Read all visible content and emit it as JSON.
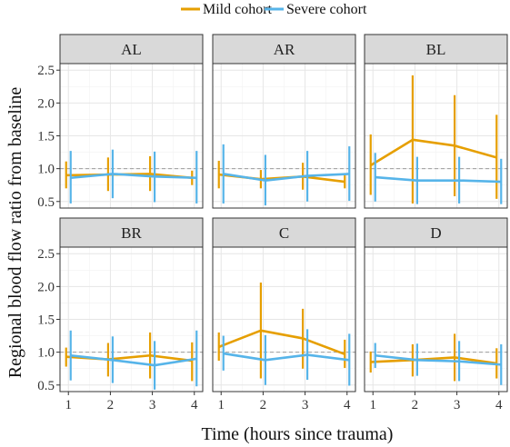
{
  "chart_data": {
    "type": "line",
    "facets": [
      "AL",
      "AR",
      "BL",
      "BR",
      "C",
      "D"
    ],
    "xlabel": "Time (hours since trauma)",
    "ylabel": "Regional blood flow ratio from baseline",
    "x": [
      1,
      2,
      3,
      4
    ],
    "xlim": [
      0.8,
      4.2
    ],
    "ylim": [
      0.4,
      2.6
    ],
    "yticks": [
      0.5,
      1.0,
      1.5,
      2.0,
      2.5
    ],
    "ytick_labels": [
      "0.5",
      "1.0",
      "1.5",
      "2.0",
      "2.5"
    ],
    "xtick_labels": [
      "1",
      "2",
      "3",
      "4"
    ],
    "reference_line": 1.0,
    "grid": true,
    "legend_position": "top",
    "series": [
      {
        "name": "Mild cohort",
        "color": "#E69F00",
        "panels": {
          "AL": {
            "mean": [
              0.9,
              0.91,
              0.92,
              0.86
            ],
            "low": [
              0.7,
              0.66,
              0.66,
              0.75
            ],
            "high": [
              1.11,
              1.17,
              1.19,
              0.97
            ]
          },
          "AR": {
            "mean": [
              0.91,
              0.84,
              0.88,
              0.8
            ],
            "low": [
              0.7,
              0.7,
              0.68,
              0.7
            ],
            "high": [
              1.12,
              0.98,
              1.09,
              0.9
            ]
          },
          "BL": {
            "mean": [
              1.05,
              1.44,
              1.35,
              1.17
            ],
            "low": [
              0.6,
              0.47,
              0.58,
              0.54
            ],
            "high": [
              1.52,
              2.42,
              2.12,
              1.82
            ]
          },
          "BR": {
            "mean": [
              0.93,
              0.89,
              0.95,
              0.87
            ],
            "low": [
              0.78,
              0.63,
              0.6,
              0.56
            ],
            "high": [
              1.07,
              1.14,
              1.3,
              1.15
            ]
          },
          "C": {
            "mean": [
              1.08,
              1.33,
              1.21,
              0.97
            ],
            "low": [
              0.87,
              0.6,
              0.75,
              0.76
            ],
            "high": [
              1.3,
              2.06,
              1.66,
              1.19
            ]
          },
          "D": {
            "mean": [
              0.85,
              0.88,
              0.92,
              0.83
            ],
            "low": [
              0.69,
              0.63,
              0.56,
              0.6
            ],
            "high": [
              1.01,
              1.12,
              1.28,
              1.06
            ]
          }
        }
      },
      {
        "name": "Severe cohort",
        "color": "#56B4E9",
        "panels": {
          "AL": {
            "mean": [
              0.86,
              0.92,
              0.88,
              0.86
            ],
            "low": [
              0.47,
              0.55,
              0.49,
              0.47
            ],
            "high": [
              1.27,
              1.29,
              1.26,
              1.27
            ]
          },
          "AR": {
            "mean": [
              0.92,
              0.82,
              0.89,
              0.92
            ],
            "low": [
              0.47,
              0.44,
              0.5,
              0.51
            ],
            "high": [
              1.37,
              1.21,
              1.27,
              1.34
            ]
          },
          "BL": {
            "mean": [
              0.87,
              0.82,
              0.82,
              0.8
            ],
            "low": [
              0.5,
              0.46,
              0.47,
              0.46
            ],
            "high": [
              1.24,
              1.18,
              1.18,
              1.15
            ]
          },
          "BR": {
            "mean": [
              0.95,
              0.88,
              0.8,
              0.9
            ],
            "low": [
              0.57,
              0.53,
              0.43,
              0.48
            ],
            "high": [
              1.33,
              1.24,
              1.17,
              1.33
            ]
          },
          "C": {
            "mean": [
              0.98,
              0.88,
              0.96,
              0.88
            ],
            "low": [
              0.72,
              0.5,
              0.58,
              0.49
            ],
            "high": [
              1.25,
              1.26,
              1.35,
              1.28
            ]
          },
          "D": {
            "mean": [
              0.95,
              0.88,
              0.86,
              0.81
            ],
            "low": [
              0.76,
              0.64,
              0.56,
              0.5
            ],
            "high": [
              1.14,
              1.13,
              1.17,
              1.12
            ]
          }
        }
      }
    ]
  }
}
